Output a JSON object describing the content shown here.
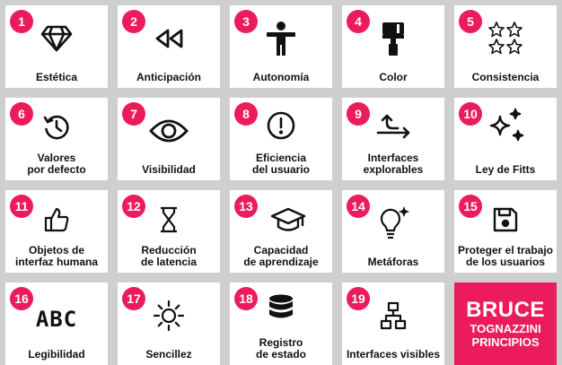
{
  "cards": [
    {
      "number": "1",
      "label": "Estética",
      "icon": "diamond-icon"
    },
    {
      "number": "2",
      "label": "Anticipación",
      "icon": "rewind-icon"
    },
    {
      "number": "3",
      "label": "Autonomía",
      "icon": "person-icon"
    },
    {
      "number": "4",
      "label": "Color",
      "icon": "paint-roller-icon"
    },
    {
      "number": "5",
      "label": "Consistencia",
      "icon": "stars-grid-icon"
    },
    {
      "number": "6",
      "label": "Valores\npor defecto",
      "icon": "history-icon"
    },
    {
      "number": "7",
      "label": "Visibilidad",
      "icon": "eye-icon"
    },
    {
      "number": "8",
      "label": "Eficiencia\ndel usuario",
      "icon": "alert-circle-icon"
    },
    {
      "number": "9",
      "label": "Interfaces\nexplorables",
      "icon": "branch-arrow-icon"
    },
    {
      "number": "10",
      "label": "Ley de Fitts",
      "icon": "sparkles-icon"
    },
    {
      "number": "11",
      "label": "Objetos de\ninterfaz humana",
      "icon": "thumbs-up-icon"
    },
    {
      "number": "12",
      "label": "Reducción\nde latencia",
      "icon": "hourglass-icon"
    },
    {
      "number": "13",
      "label": "Capacidad\nde aprendizaje",
      "icon": "graduation-cap-icon"
    },
    {
      "number": "14",
      "label": "Metáforas",
      "icon": "lightbulb-icon"
    },
    {
      "number": "15",
      "label": "Proteger el trabajo\nde los usuarios",
      "icon": "floppy-disk-icon"
    },
    {
      "number": "16",
      "label": "Legibilidad",
      "icon": "abc-icon"
    },
    {
      "number": "17",
      "label": "Sencillez",
      "icon": "sun-icon"
    },
    {
      "number": "18",
      "label": "Registro\nde estado",
      "icon": "database-icon"
    },
    {
      "number": "19",
      "label": "Interfaces visibles",
      "icon": "sitemap-icon"
    }
  ],
  "brand": {
    "line1": "BRUCE",
    "line2": "TOGNAZZINI",
    "line3": "PRINCIPIOS",
    "color": "#ec1b5b"
  },
  "abc_text": "ABC"
}
